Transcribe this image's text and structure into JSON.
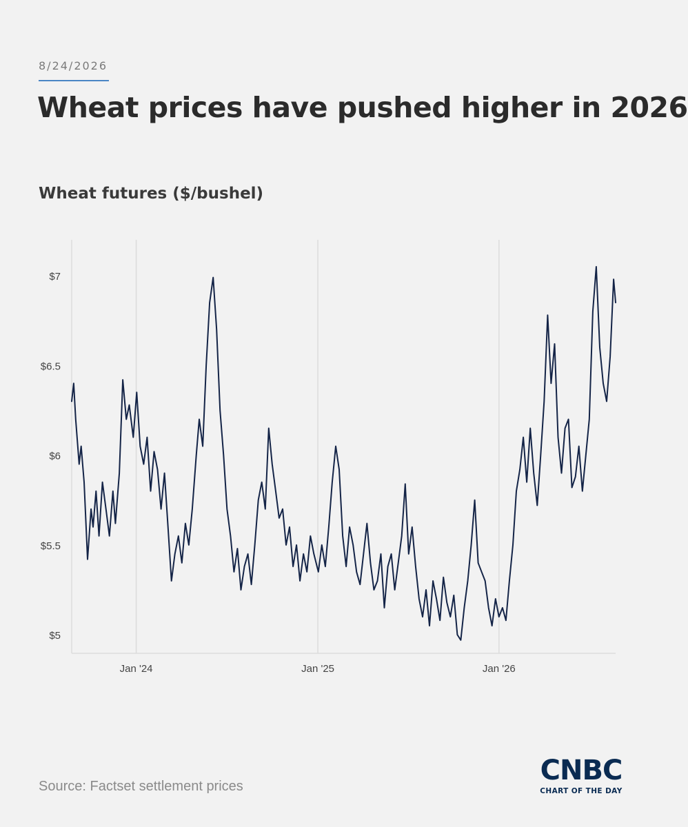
{
  "date": "8/24/2026",
  "headline": "Wheat prices have pushed higher in 2026",
  "source": "Source: Factset settlement prices",
  "logo": {
    "mark": "CNBC",
    "subtitle": "CHART OF THE DAY"
  },
  "colors": {
    "line": "#142447",
    "grid": "#dcdcdc",
    "accent_rule": "#4a86c5",
    "logo": "#0a2b52"
  },
  "chart_data": {
    "type": "line",
    "title": "Wheat futures ($/bushel)",
    "xlabel": "",
    "ylabel": "",
    "ylim": [
      4.8,
      7.2
    ],
    "xlim": [
      "2023-08-24",
      "2026-08-24"
    ],
    "yticks": [
      5,
      5.5,
      6,
      6.5,
      7
    ],
    "ytick_labels": [
      "$5",
      "$5.5",
      "$6",
      "$6.5",
      "$7"
    ],
    "xticks": [
      "2024-01-01",
      "2025-01-01",
      "2026-01-01"
    ],
    "xtick_labels": [
      "Jan '24",
      "Jan '25",
      "Jan '26"
    ],
    "grid": "vertical",
    "series": [
      {
        "x": [
          "2023-08-24",
          "2023-08-28",
          "2023-09-01",
          "2023-09-08",
          "2023-09-12",
          "2023-09-18",
          "2023-09-25",
          "2023-10-02",
          "2023-10-06",
          "2023-10-12",
          "2023-10-18",
          "2023-10-25",
          "2023-11-01",
          "2023-11-08",
          "2023-11-15",
          "2023-11-20",
          "2023-11-28",
          "2023-12-05",
          "2023-12-12",
          "2023-12-18",
          "2023-12-26",
          "2024-01-02",
          "2024-01-09",
          "2024-01-16",
          "2024-01-23",
          "2024-01-30",
          "2024-02-06",
          "2024-02-13",
          "2024-02-20",
          "2024-02-27",
          "2024-03-05",
          "2024-03-12",
          "2024-03-19",
          "2024-03-26",
          "2024-04-02",
          "2024-04-09",
          "2024-04-16",
          "2024-04-23",
          "2024-05-01",
          "2024-05-07",
          "2024-05-14",
          "2024-05-21",
          "2024-05-28",
          "2024-06-04",
          "2024-06-11",
          "2024-06-18",
          "2024-06-25",
          "2024-07-02",
          "2024-07-09",
          "2024-07-16",
          "2024-07-23",
          "2024-07-30",
          "2024-08-06",
          "2024-08-13",
          "2024-08-20",
          "2024-08-27",
          "2024-09-03",
          "2024-09-10",
          "2024-09-17",
          "2024-09-24",
          "2024-10-01",
          "2024-10-08",
          "2024-10-15",
          "2024-10-22",
          "2024-10-29",
          "2024-11-05",
          "2024-11-12",
          "2024-11-19",
          "2024-11-26",
          "2024-12-03",
          "2024-12-10",
          "2024-12-17",
          "2024-12-24",
          "2025-01-02",
          "2025-01-09",
          "2025-01-16",
          "2025-01-23",
          "2025-01-30",
          "2025-02-06",
          "2025-02-13",
          "2025-02-20",
          "2025-02-27",
          "2025-03-06",
          "2025-03-13",
          "2025-03-20",
          "2025-03-27",
          "2025-04-03",
          "2025-04-10",
          "2025-04-17",
          "2025-04-24",
          "2025-05-01",
          "2025-05-08",
          "2025-05-15",
          "2025-05-22",
          "2025-05-29",
          "2025-06-05",
          "2025-06-12",
          "2025-06-19",
          "2025-06-26",
          "2025-07-03",
          "2025-07-10",
          "2025-07-17",
          "2025-07-24",
          "2025-07-31",
          "2025-08-07",
          "2025-08-14",
          "2025-08-21",
          "2025-08-28",
          "2025-09-04",
          "2025-09-11",
          "2025-09-18",
          "2025-09-25",
          "2025-10-02",
          "2025-10-09",
          "2025-10-16",
          "2025-10-23",
          "2025-10-30",
          "2025-11-06",
          "2025-11-13",
          "2025-11-20",
          "2025-11-27",
          "2025-12-04",
          "2025-12-11",
          "2025-12-18",
          "2025-12-25",
          "2026-01-01",
          "2026-01-08",
          "2026-01-15",
          "2026-01-22",
          "2026-01-29",
          "2026-02-05",
          "2026-02-12",
          "2026-02-19",
          "2026-02-26",
          "2026-03-05",
          "2026-03-12",
          "2026-03-19",
          "2026-03-26",
          "2026-04-02",
          "2026-04-09",
          "2026-04-16",
          "2026-04-23",
          "2026-04-30",
          "2026-05-07",
          "2026-05-14",
          "2026-05-21",
          "2026-05-28",
          "2026-06-04",
          "2026-06-11",
          "2026-06-18",
          "2026-06-25",
          "2026-07-02",
          "2026-07-09",
          "2026-07-16",
          "2026-07-23",
          "2026-07-30",
          "2026-08-06",
          "2026-08-13",
          "2026-08-20",
          "2026-08-24"
        ],
        "values": [
          6.3,
          6.4,
          6.2,
          5.95,
          6.05,
          5.85,
          5.42,
          5.7,
          5.6,
          5.8,
          5.55,
          5.85,
          5.7,
          5.55,
          5.8,
          5.62,
          5.9,
          6.42,
          6.2,
          6.28,
          6.1,
          6.35,
          6.05,
          5.95,
          6.1,
          5.8,
          6.02,
          5.92,
          5.7,
          5.9,
          5.6,
          5.3,
          5.45,
          5.55,
          5.4,
          5.62,
          5.5,
          5.7,
          6.0,
          6.2,
          6.05,
          6.5,
          6.85,
          6.99,
          6.7,
          6.25,
          6.0,
          5.7,
          5.55,
          5.35,
          5.48,
          5.25,
          5.38,
          5.45,
          5.28,
          5.5,
          5.75,
          5.85,
          5.7,
          6.15,
          5.95,
          5.8,
          5.65,
          5.7,
          5.5,
          5.6,
          5.38,
          5.5,
          5.3,
          5.45,
          5.35,
          5.55,
          5.45,
          5.35,
          5.5,
          5.38,
          5.6,
          5.85,
          6.05,
          5.92,
          5.55,
          5.38,
          5.6,
          5.5,
          5.35,
          5.28,
          5.45,
          5.62,
          5.4,
          5.25,
          5.3,
          5.45,
          5.15,
          5.38,
          5.45,
          5.25,
          5.4,
          5.55,
          5.84,
          5.45,
          5.6,
          5.38,
          5.2,
          5.1,
          5.25,
          5.05,
          5.3,
          5.2,
          5.08,
          5.32,
          5.18,
          5.1,
          5.22,
          5.0,
          4.97,
          5.15,
          5.3,
          5.5,
          5.75,
          5.4,
          5.35,
          5.3,
          5.15,
          5.05,
          5.2,
          5.1,
          5.15,
          5.08,
          5.3,
          5.5,
          5.8,
          5.92,
          6.1,
          5.85,
          6.15,
          5.9,
          5.72,
          6.0,
          6.3,
          6.78,
          6.4,
          6.62,
          6.1,
          5.9,
          6.15,
          6.2,
          5.82,
          5.88,
          6.05,
          5.8,
          6.0,
          6.2,
          6.8,
          7.05,
          6.6,
          6.4,
          6.3,
          6.55,
          6.98,
          6.85
        ]
      }
    ]
  }
}
